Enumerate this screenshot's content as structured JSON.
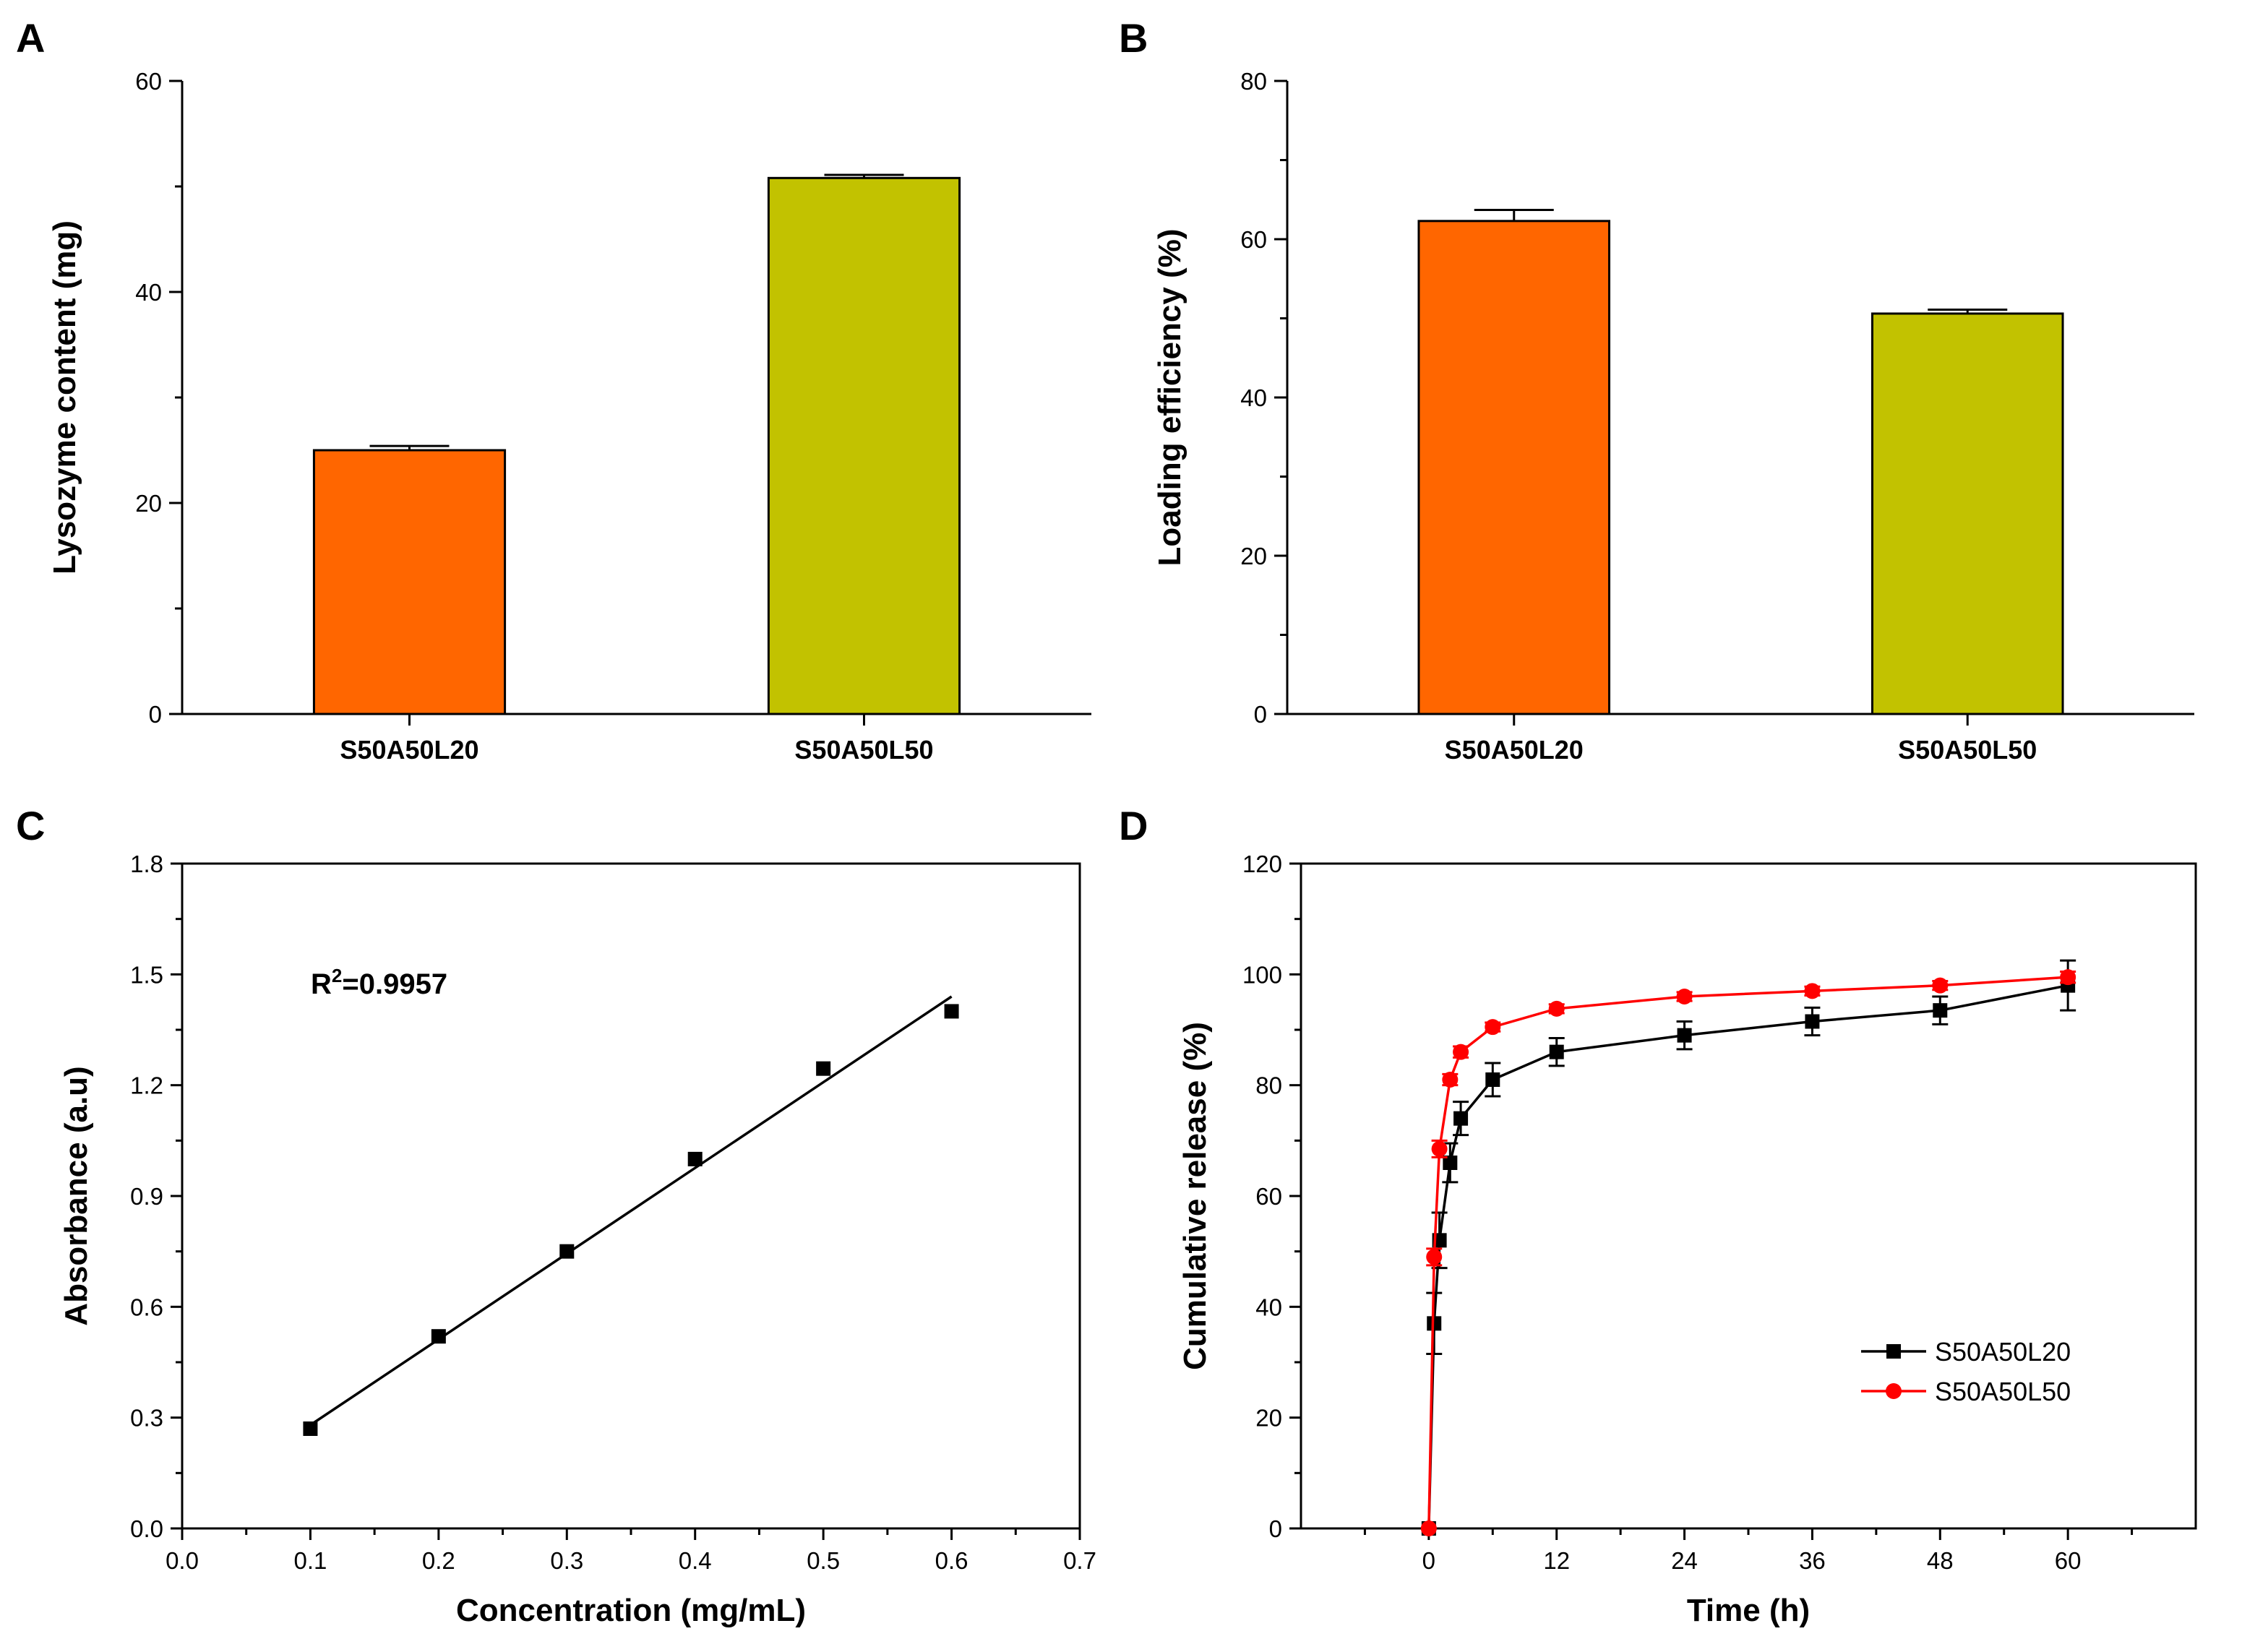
{
  "chart_data": [
    {
      "panel": "A",
      "type": "bar",
      "categories": [
        "S50A50L20",
        "S50A50L50"
      ],
      "values": [
        25.0,
        50.8
      ],
      "errors": [
        0.4,
        0.3
      ],
      "colors": [
        "#FF6600",
        "#C2C200"
      ],
      "xlabel": "",
      "ylabel": "Lysozyme content (mg)",
      "ylim": [
        0,
        60
      ],
      "yticks": [
        0,
        20,
        40,
        60
      ]
    },
    {
      "panel": "B",
      "type": "bar",
      "categories": [
        "S50A50L20",
        "S50A50L50"
      ],
      "values": [
        62.3,
        50.6
      ],
      "errors": [
        1.4,
        0.5
      ],
      "colors": [
        "#FF6600",
        "#C2C200"
      ],
      "xlabel": "",
      "ylabel": "Loading efficiency (%)",
      "ylim": [
        0,
        80
      ],
      "yticks": [
        0,
        20,
        40,
        60,
        80
      ]
    },
    {
      "panel": "C",
      "type": "scatter",
      "x": [
        0.1,
        0.2,
        0.3,
        0.4,
        0.5,
        0.6
      ],
      "y": [
        0.27,
        0.52,
        0.75,
        1.0,
        1.245,
        1.4
      ],
      "fit_line": {
        "x": [
          0.1,
          0.6
        ],
        "y": [
          0.28,
          1.44
        ]
      },
      "annotation": {
        "base": "R",
        "sup": "2",
        "rest": "=0.9957"
      },
      "xlabel": "Concentration (mg/mL)",
      "ylabel": "Absorbance (a.u)",
      "xlim": [
        0.0,
        0.7
      ],
      "ylim": [
        0.0,
        1.8
      ],
      "xticks": [
        "0.0",
        "0.1",
        "0.2",
        "0.3",
        "0.4",
        "0.5",
        "0.6",
        "0.7"
      ],
      "yticks": [
        "0.0",
        "0.3",
        "0.6",
        "0.9",
        "1.2",
        "1.5",
        "1.8"
      ]
    },
    {
      "panel": "D",
      "type": "line",
      "xlabel": "Time (h)",
      "ylabel": "Cumulative release (%)",
      "xlim": [
        -12,
        72
      ],
      "ylim": [
        0,
        120
      ],
      "xticks": [
        0,
        12,
        24,
        36,
        48,
        60
      ],
      "yticks": [
        0,
        20,
        40,
        60,
        80,
        100,
        120
      ],
      "legend_position": "bottom-right",
      "series": [
        {
          "name": "S50A50L20",
          "color": "#000000",
          "marker": "square",
          "x": [
            0,
            0.5,
            1,
            2,
            3,
            6,
            12,
            24,
            36,
            48,
            60
          ],
          "y": [
            0,
            37,
            52,
            66,
            74,
            81,
            86,
            89,
            91.5,
            93.5,
            98
          ],
          "err": [
            0,
            5.5,
            5,
            3.5,
            3,
            3,
            2.5,
            2.5,
            2.5,
            2.5,
            4.5
          ]
        },
        {
          "name": "S50A50L50",
          "color": "#FF0000",
          "marker": "circle",
          "x": [
            0,
            0.5,
            1,
            2,
            3,
            6,
            12,
            24,
            36,
            48,
            60
          ],
          "y": [
            0,
            49,
            68.5,
            81,
            86,
            90.5,
            93.8,
            96,
            97,
            98,
            99.5
          ],
          "err": [
            0,
            1.5,
            1.5,
            1,
            1,
            0.8,
            0.8,
            0.8,
            0.8,
            0.8,
            1
          ]
        }
      ]
    }
  ],
  "panel_letters": [
    "A",
    "B",
    "C",
    "D"
  ]
}
